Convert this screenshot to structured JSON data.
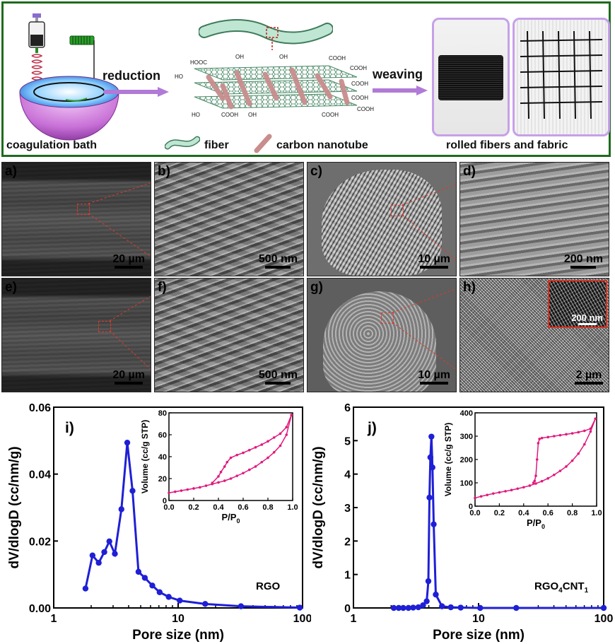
{
  "scheme": {
    "step1_label": "coagulation bath",
    "arrow1_label": "reduction",
    "arrow2_label": "weaving",
    "legend_fiber": "fiber",
    "legend_cnt": "carbon nanotube",
    "photos_label": "rolled fibers and fabric",
    "groups": [
      "HOOC",
      "OH",
      "COOH",
      "HO",
      "OH",
      "COOH",
      "COOH",
      "HO",
      "COOH",
      "OH",
      "COOH",
      "COOH",
      "COOH",
      "HOOC",
      "HO",
      "COOH",
      "HO",
      "COOH",
      "COOH"
    ]
  },
  "sem_panels": [
    {
      "label": "a)",
      "scale": "20 µm"
    },
    {
      "label": "b)",
      "scale": "500 nm"
    },
    {
      "label": "c)",
      "scale": "10 µm"
    },
    {
      "label": "d)",
      "scale": "200 nm"
    },
    {
      "label": "e)",
      "scale": "20 µm"
    },
    {
      "label": "f)",
      "scale": "500 nm"
    },
    {
      "label": "g)",
      "scale": "10 µm"
    },
    {
      "label": "h)",
      "scale": "2 µm",
      "inset_scale": "200 nm"
    }
  ],
  "chart_data": [
    {
      "type": "line",
      "panel_label": "i)",
      "annotation": "RGO",
      "xlabel": "Pore size (nm)",
      "ylabel": "dV/dlogD (cc/nm/g)",
      "xscale": "log",
      "xlim": [
        1,
        100
      ],
      "ylim": [
        0,
        0.06
      ],
      "xticks": [
        "1",
        "10",
        "100"
      ],
      "yticks": [
        "0.00",
        "0.02",
        "0.04",
        "0.06"
      ],
      "color": "#1f1fd6",
      "x": [
        1.8,
        2.05,
        2.3,
        2.55,
        2.8,
        3.1,
        3.5,
        3.9,
        4.3,
        4.8,
        5.4,
        6.2,
        7.1,
        8.4,
        10.3,
        16.5,
        32.0,
        95.0
      ],
      "y": [
        0.0058,
        0.0157,
        0.0135,
        0.0167,
        0.0199,
        0.0162,
        0.0295,
        0.0494,
        0.035,
        0.0108,
        0.009,
        0.0067,
        0.0047,
        0.0033,
        0.0022,
        0.0012,
        0.0005,
        0.0001
      ],
      "inset": {
        "type": "line",
        "xlabel": "P/P0",
        "ylabel": "Volume (cc/g STP)",
        "xlim": [
          0.0,
          1.0
        ],
        "ylim": [
          0,
          80
        ],
        "xticks": [
          "0.0",
          "0.2",
          "0.4",
          "0.6",
          "0.8",
          "1.0"
        ],
        "yticks": [
          "0",
          "20",
          "40",
          "60",
          "80"
        ],
        "color": "#e0197d",
        "adsorption": {
          "x": [
            0.0,
            0.05,
            0.1,
            0.15,
            0.2,
            0.25,
            0.3,
            0.35,
            0.4,
            0.45,
            0.5,
            0.55,
            0.6,
            0.65,
            0.7,
            0.75,
            0.8,
            0.85,
            0.9,
            0.95,
            0.99
          ],
          "y": [
            7,
            8,
            9,
            10,
            11,
            12,
            13.5,
            15,
            16.5,
            18,
            20,
            22.5,
            25,
            28,
            31,
            35,
            39,
            44,
            50,
            60,
            78
          ]
        },
        "desorption": {
          "x": [
            0.99,
            0.95,
            0.9,
            0.85,
            0.8,
            0.75,
            0.7,
            0.65,
            0.6,
            0.55,
            0.5,
            0.47,
            0.45,
            0.42,
            0.4,
            0.35
          ],
          "y": [
            78,
            67,
            61,
            57.5,
            54,
            51,
            48.5,
            46,
            43.5,
            41.5,
            39,
            35,
            31,
            26,
            22,
            16
          ]
        }
      }
    },
    {
      "type": "line",
      "panel_label": "j)",
      "annotation": "RGO",
      "annotation_sub1": "4",
      "annotation_mid": "CNT",
      "annotation_sub2": "1",
      "xlabel": "Pore size (nm)",
      "ylabel": "dV/dlogD (cc/nm/g)",
      "xscale": "log",
      "xlim": [
        1,
        100
      ],
      "ylim": [
        0,
        6
      ],
      "xticks": [
        "1",
        "10",
        "100"
      ],
      "yticks": [
        "0",
        "1",
        "2",
        "3",
        "4",
        "5",
        "6"
      ],
      "color": "#1f1fd6",
      "x": [
        2.1,
        2.3,
        2.5,
        2.75,
        3.0,
        3.3,
        3.6,
        3.85,
        3.97,
        4.05,
        4.12,
        4.2,
        4.28,
        4.38,
        4.55,
        5.1,
        6.0,
        7.2,
        10.3,
        20.0,
        100.0
      ],
      "y": [
        0.0,
        0.0,
        0.0,
        0.0,
        0.01,
        0.02,
        0.08,
        0.2,
        0.8,
        3.3,
        4.5,
        5.12,
        4.2,
        2.5,
        0.4,
        0.05,
        0.02,
        0.01,
        0.0,
        0.0,
        0.0
      ],
      "inset": {
        "type": "line",
        "xlabel": "P/P0",
        "ylabel": "Volume (cc/g STP)",
        "xlim": [
          0.0,
          1.0
        ],
        "ylim": [
          0,
          400
        ],
        "xticks": [
          "0.0",
          "0.2",
          "0.4",
          "0.6",
          "0.8",
          "1.0"
        ],
        "yticks": [
          "0",
          "100",
          "200",
          "300",
          "400"
        ],
        "color": "#e0197d",
        "adsorption": {
          "x": [
            0.0,
            0.05,
            0.1,
            0.15,
            0.2,
            0.25,
            0.3,
            0.35,
            0.4,
            0.45,
            0.5,
            0.55,
            0.6,
            0.65,
            0.7,
            0.75,
            0.8,
            0.85,
            0.9,
            0.95,
            0.99
          ],
          "y": [
            35,
            42,
            48,
            54,
            59,
            64,
            69,
            75,
            81,
            88,
            97,
            107,
            119,
            134,
            151,
            170,
            195,
            225,
            265,
            320,
            375
          ]
        },
        "desorption": {
          "x": [
            0.99,
            0.95,
            0.9,
            0.85,
            0.8,
            0.75,
            0.7,
            0.65,
            0.6,
            0.55,
            0.53,
            0.52,
            0.51,
            0.5,
            0.49,
            0.48
          ],
          "y": [
            375,
            332,
            323,
            317,
            312,
            308,
            304,
            300,
            296,
            292,
            288,
            270,
            200,
            130,
            108,
            100
          ]
        }
      }
    }
  ]
}
